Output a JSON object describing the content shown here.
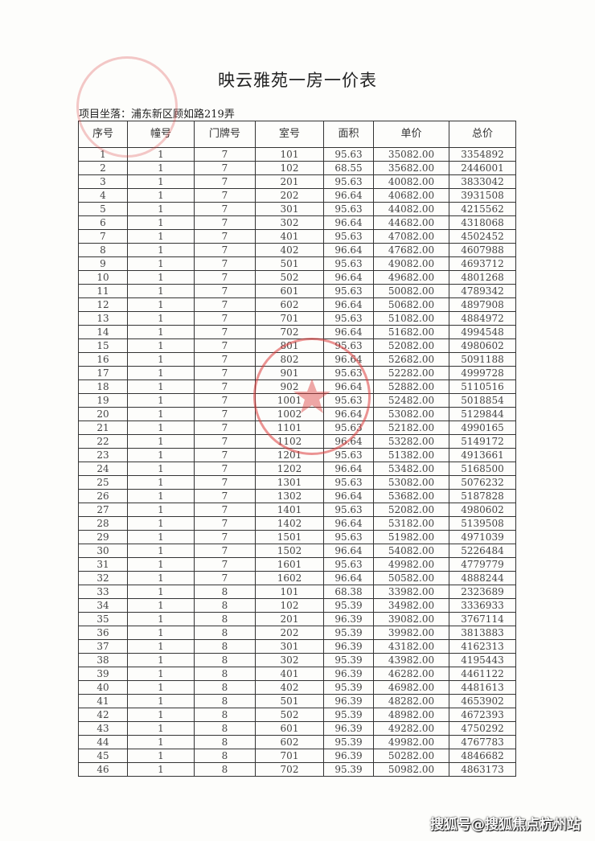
{
  "title": "映云雅苑一房一价表",
  "address": "项目坐落：浦东新区顾如路219弄",
  "columns": [
    "序号",
    "幢号",
    "门牌号",
    "室号",
    "面积",
    "单价",
    "总价"
  ],
  "rows": [
    [
      "1",
      "1",
      "7",
      "101",
      "95.63",
      "35082.00",
      "3354892"
    ],
    [
      "2",
      "1",
      "7",
      "102",
      "68.55",
      "35682.00",
      "2446001"
    ],
    [
      "3",
      "1",
      "7",
      "201",
      "95.63",
      "40082.00",
      "3833042"
    ],
    [
      "4",
      "1",
      "7",
      "202",
      "96.64",
      "40682.00",
      "3931508"
    ],
    [
      "5",
      "1",
      "7",
      "301",
      "95.63",
      "44082.00",
      "4215562"
    ],
    [
      "6",
      "1",
      "7",
      "302",
      "96.64",
      "44682.00",
      "4318068"
    ],
    [
      "7",
      "1",
      "7",
      "401",
      "95.63",
      "47082.00",
      "4502452"
    ],
    [
      "8",
      "1",
      "7",
      "402",
      "96.64",
      "47682.00",
      "4607988"
    ],
    [
      "9",
      "1",
      "7",
      "501",
      "95.63",
      "49082.00",
      "4693712"
    ],
    [
      "10",
      "1",
      "7",
      "502",
      "96.64",
      "49682.00",
      "4801268"
    ],
    [
      "11",
      "1",
      "7",
      "601",
      "95.63",
      "50082.00",
      "4789342"
    ],
    [
      "12",
      "1",
      "7",
      "602",
      "96.64",
      "50682.00",
      "4897908"
    ],
    [
      "13",
      "1",
      "7",
      "701",
      "95.63",
      "51082.00",
      "4884972"
    ],
    [
      "14",
      "1",
      "7",
      "702",
      "96.64",
      "51682.00",
      "4994548"
    ],
    [
      "15",
      "1",
      "7",
      "801",
      "95.63",
      "52082.00",
      "4980602"
    ],
    [
      "16",
      "1",
      "7",
      "802",
      "96.64",
      "52682.00",
      "5091188"
    ],
    [
      "17",
      "1",
      "7",
      "901",
      "95.63",
      "52282.00",
      "4999728"
    ],
    [
      "18",
      "1",
      "7",
      "902",
      "96.64",
      "52882.00",
      "5110516"
    ],
    [
      "19",
      "1",
      "7",
      "1001",
      "95.63",
      "52482.00",
      "5018854"
    ],
    [
      "20",
      "1",
      "7",
      "1002",
      "96.64",
      "53082.00",
      "5129844"
    ],
    [
      "21",
      "1",
      "7",
      "1101",
      "95.63",
      "52182.00",
      "4990165"
    ],
    [
      "22",
      "1",
      "7",
      "1102",
      "96.64",
      "53282.00",
      "5149172"
    ],
    [
      "23",
      "1",
      "7",
      "1201",
      "95.63",
      "51382.00",
      "4913661"
    ],
    [
      "24",
      "1",
      "7",
      "1202",
      "96.64",
      "53482.00",
      "5168500"
    ],
    [
      "25",
      "1",
      "7",
      "1301",
      "95.63",
      "53082.00",
      "5076232"
    ],
    [
      "26",
      "1",
      "7",
      "1302",
      "96.64",
      "53682.00",
      "5187828"
    ],
    [
      "27",
      "1",
      "7",
      "1401",
      "95.63",
      "52082.00",
      "4980602"
    ],
    [
      "28",
      "1",
      "7",
      "1402",
      "96.64",
      "53182.00",
      "5139508"
    ],
    [
      "29",
      "1",
      "7",
      "1501",
      "95.63",
      "51982.00",
      "4971039"
    ],
    [
      "30",
      "1",
      "7",
      "1502",
      "96.64",
      "54082.00",
      "5226484"
    ],
    [
      "31",
      "1",
      "7",
      "1601",
      "95.63",
      "49982.00",
      "4779779"
    ],
    [
      "32",
      "1",
      "7",
      "1602",
      "96.64",
      "50582.00",
      "4888244"
    ],
    [
      "33",
      "1",
      "8",
      "101",
      "68.38",
      "33982.00",
      "2323689"
    ],
    [
      "34",
      "1",
      "8",
      "102",
      "95.39",
      "34982.00",
      "3336933"
    ],
    [
      "35",
      "1",
      "8",
      "201",
      "96.39",
      "39082.00",
      "3767114"
    ],
    [
      "36",
      "1",
      "8",
      "202",
      "95.39",
      "39982.00",
      "3813883"
    ],
    [
      "37",
      "1",
      "8",
      "301",
      "96.39",
      "43182.00",
      "4162313"
    ],
    [
      "38",
      "1",
      "8",
      "302",
      "95.39",
      "43982.00",
      "4195443"
    ],
    [
      "39",
      "1",
      "8",
      "401",
      "96.39",
      "46282.00",
      "4461122"
    ],
    [
      "40",
      "1",
      "8",
      "402",
      "95.39",
      "46982.00",
      "4481613"
    ],
    [
      "41",
      "1",
      "8",
      "501",
      "96.39",
      "48282.00",
      "4653902"
    ],
    [
      "42",
      "1",
      "8",
      "502",
      "95.39",
      "48982.00",
      "4672393"
    ],
    [
      "43",
      "1",
      "8",
      "601",
      "96.39",
      "49282.00",
      "4750292"
    ],
    [
      "44",
      "1",
      "8",
      "602",
      "95.39",
      "49982.00",
      "4767783"
    ],
    [
      "45",
      "1",
      "8",
      "701",
      "96.39",
      "50282.00",
      "4846682"
    ],
    [
      "46",
      "1",
      "8",
      "702",
      "95.39",
      "50982.00",
      "4863173"
    ]
  ],
  "watermark": "搜狐号@搜狐焦点杭州站",
  "stamp_color": "#dc3c3c"
}
